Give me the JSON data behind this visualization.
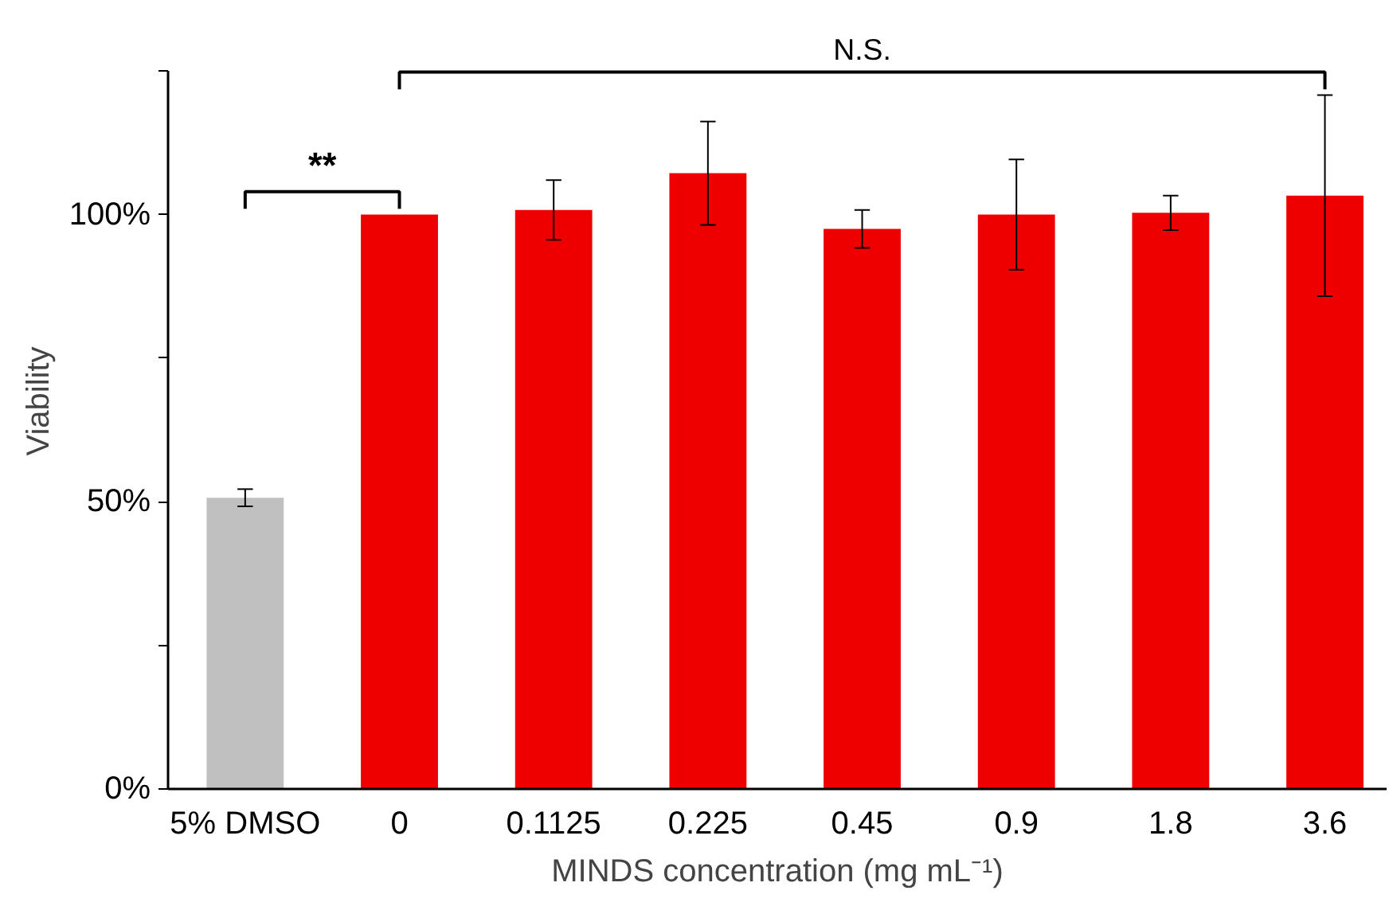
{
  "chart_data": {
    "type": "bar",
    "xlabel": "MINDS concentration (mg mL⁻¹)",
    "ylabel": "Viability",
    "categories": [
      "5% DMSO",
      "0",
      "0.1125",
      "0.225",
      "0.45",
      "0.9",
      "1.8",
      "3.6"
    ],
    "values": [
      50.7,
      100,
      100.8,
      107.2,
      97.5,
      100,
      100.3,
      103.3
    ],
    "colors": [
      "#c0c0c0",
      "#ee0000",
      "#ee0000",
      "#ee0000",
      "#ee0000",
      "#ee0000",
      "#ee0000",
      "#ee0000"
    ],
    "errors": [
      1.5,
      null,
      5.2,
      9,
      3.3,
      9.6,
      3,
      17.5
    ],
    "ylim": [
      0,
      125
    ],
    "yticks": [
      {
        "value": 0,
        "label": "0%"
      },
      {
        "value": 25,
        "label": null
      },
      {
        "value": 50,
        "label": "50%"
      },
      {
        "value": 75,
        "label": null
      },
      {
        "value": 100,
        "label": "100%"
      },
      {
        "value": 125,
        "label": null
      }
    ],
    "annotations": [
      "**",
      "N.S."
    ],
    "grid": false
  }
}
